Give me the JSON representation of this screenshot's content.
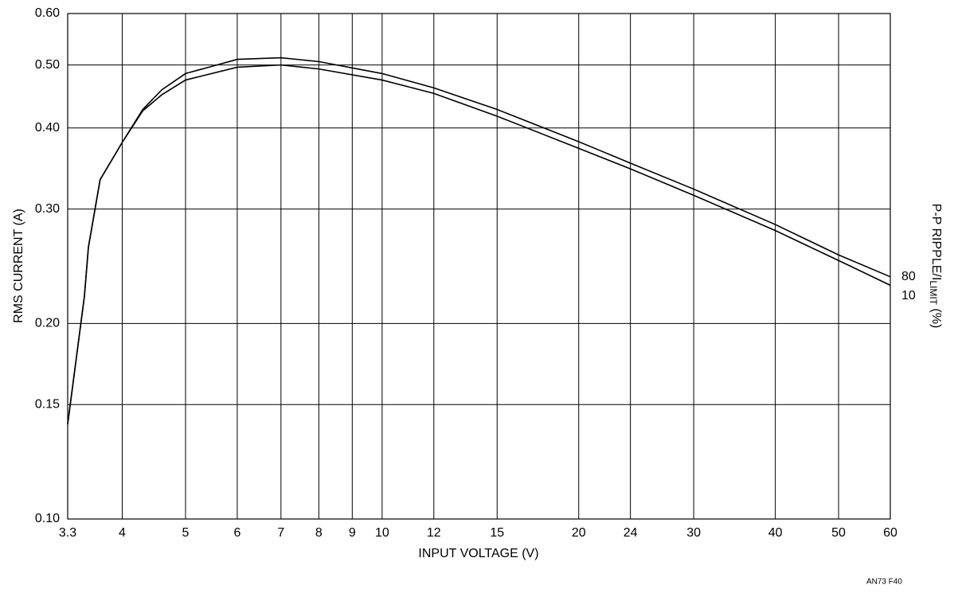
{
  "chart_data": {
    "type": "line",
    "xlabel": "INPUT VOLTAGE (V)",
    "ylabel": "RMS CURRENT (A)",
    "legend_title": {
      "prefix": "P-P RIPPLE/I",
      "sub": "LIMIT",
      "suffix": " (%)"
    },
    "note": "AN73 F40",
    "xlog": true,
    "ylog": true,
    "grid": true,
    "xlim": [
      3.3,
      60
    ],
    "ylim": [
      0.1,
      0.6
    ],
    "xticks": [
      3.3,
      4,
      5,
      6,
      7,
      8,
      9,
      10,
      12,
      15,
      20,
      24,
      30,
      40,
      50,
      60
    ],
    "yticks": [
      {
        "value": 0.1,
        "label": "0.10"
      },
      {
        "value": 0.15,
        "label": "0.15"
      },
      {
        "value": 0.2,
        "label": "0.20"
      },
      {
        "value": 0.3,
        "label": "0.30"
      },
      {
        "value": 0.4,
        "label": "0.40"
      },
      {
        "value": 0.5,
        "label": "0.50"
      },
      {
        "value": 0.6,
        "label": "0.60"
      }
    ],
    "x": [
      3.3,
      3.5,
      3.55,
      3.7,
      4,
      4.3,
      4.6,
      5,
      6,
      7,
      8,
      10,
      12,
      15,
      20,
      24,
      30,
      40,
      50,
      60
    ],
    "series": [
      {
        "name": "80",
        "color": "#000000",
        "values": [
          0.14,
          0.22,
          0.262,
          0.333,
          0.38,
          0.427,
          0.458,
          0.485,
          0.51,
          0.513,
          0.506,
          0.485,
          0.461,
          0.427,
          0.381,
          0.353,
          0.322,
          0.284,
          0.255,
          0.236
        ]
      },
      {
        "name": "10",
        "color": "#000000",
        "values": [
          0.14,
          0.22,
          0.262,
          0.333,
          0.38,
          0.425,
          0.45,
          0.474,
          0.496,
          0.5,
          0.493,
          0.474,
          0.452,
          0.417,
          0.372,
          0.346,
          0.315,
          0.278,
          0.25,
          0.229
        ]
      }
    ]
  }
}
